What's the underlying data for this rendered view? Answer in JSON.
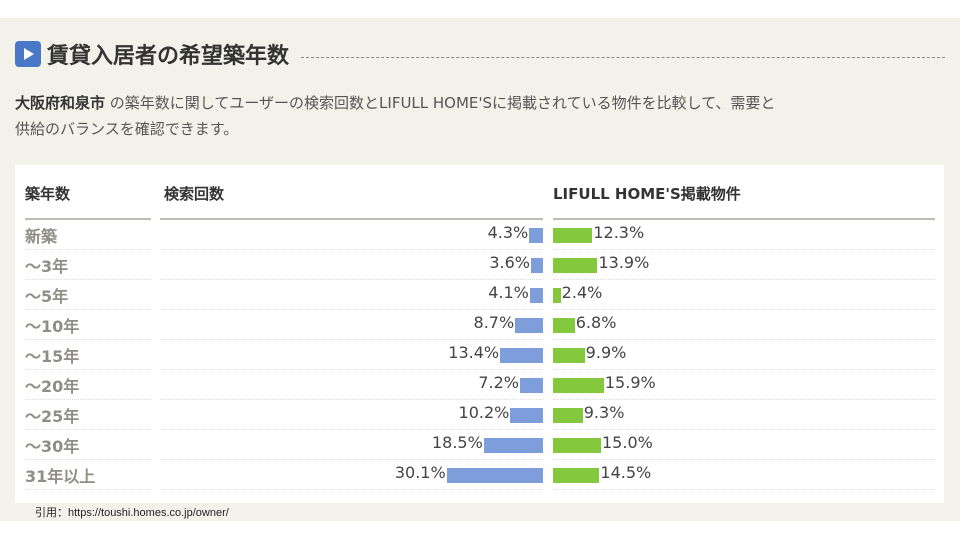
{
  "header": {
    "title": "賃貸入居者の希望築年数",
    "icon": "play-icon"
  },
  "description": {
    "city": "大阪府和泉市",
    "text_line1": " の築年数に関してユーザーの検索回数とLIFULL HOME'Sに掲載されている物件を比較して、需要と",
    "text_line2": "供給のバランスを確認できます。"
  },
  "colors": {
    "search": "#7d9ddb",
    "listing": "#84c83e",
    "icon": "#4a78c8"
  },
  "chart_data": {
    "type": "bar",
    "columns": [
      "築年数",
      "検索回数",
      "LIFULL HOME'S掲載物件"
    ],
    "categories": [
      "新築",
      "～3年",
      "～5年",
      "～10年",
      "～15年",
      "～20年",
      "～25年",
      "～30年",
      "31年以上"
    ],
    "series": [
      {
        "name": "検索回数",
        "values": [
          4.3,
          3.6,
          4.1,
          8.7,
          13.4,
          7.2,
          10.2,
          18.5,
          30.1
        ]
      },
      {
        "name": "LIFULL HOME'S掲載物件",
        "values": [
          12.3,
          13.9,
          2.4,
          6.8,
          9.9,
          15.9,
          9.3,
          15.0,
          14.5
        ]
      }
    ]
  },
  "citation": "引用：https://toushi.homes.co.jp/owner/"
}
